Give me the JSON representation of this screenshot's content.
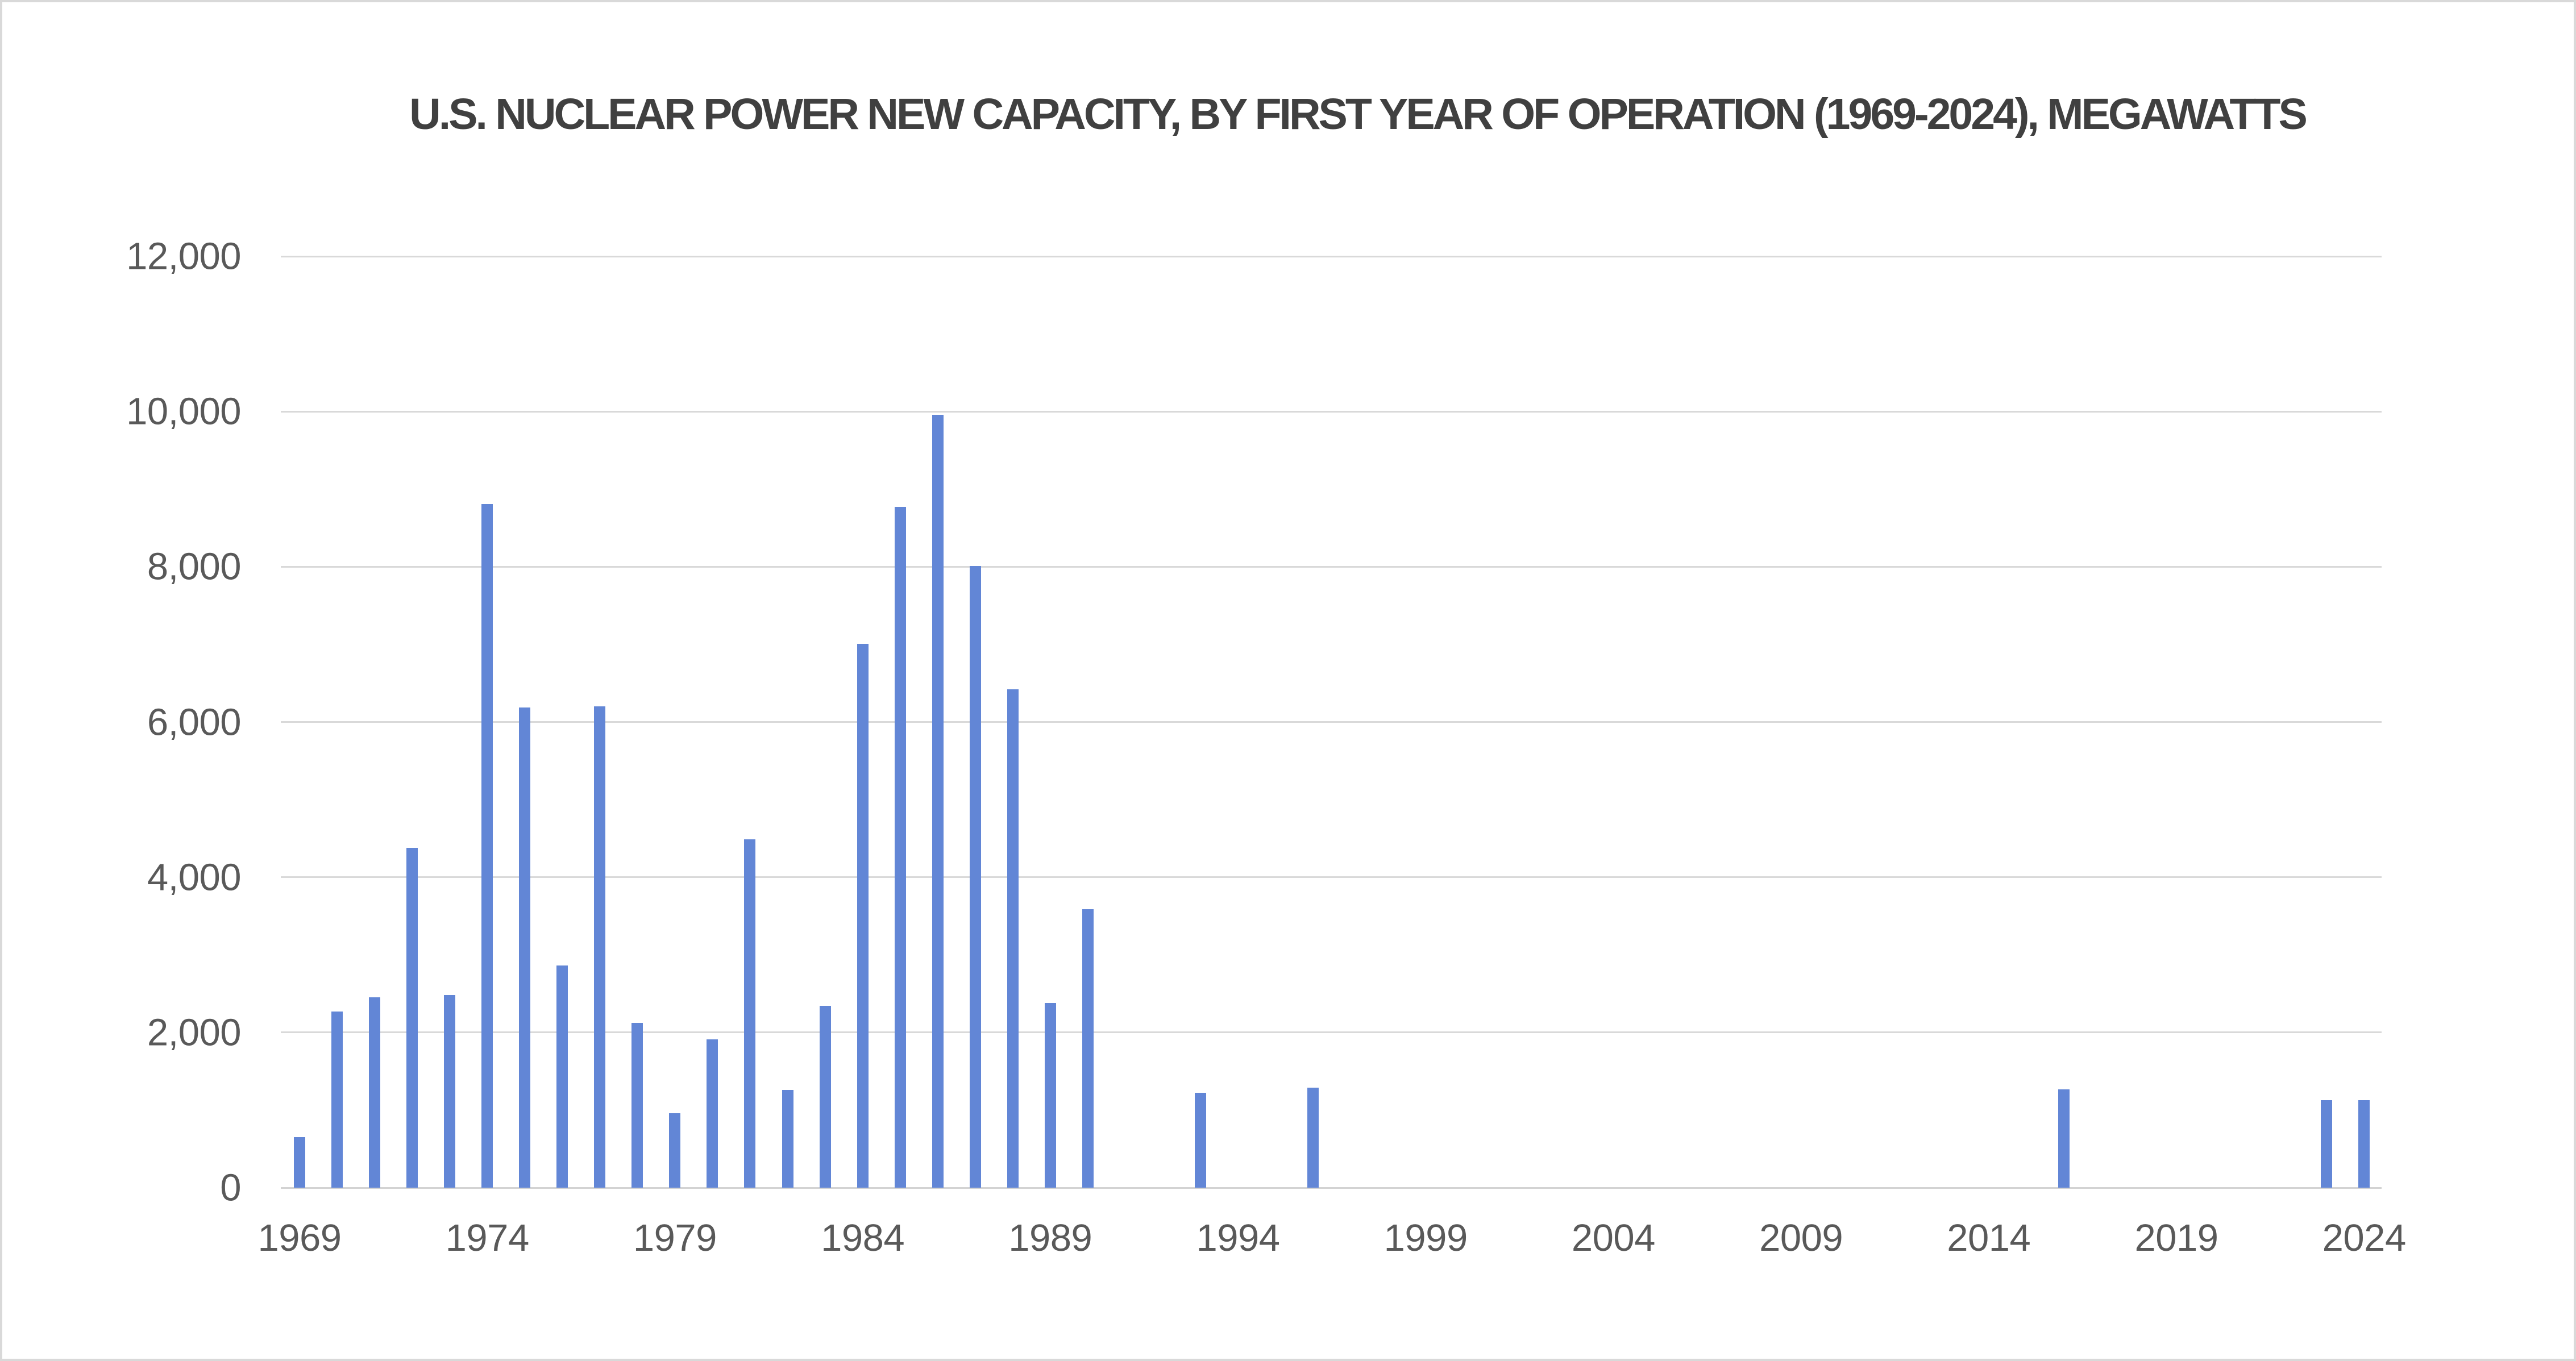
{
  "chart_data": {
    "type": "bar",
    "title": "U.S. NUCLEAR POWER NEW CAPACITY, BY FIRST YEAR OF OPERATION (1969-2024), MEGAWATTS",
    "xlabel": "",
    "ylabel": "",
    "unit": "megawatts",
    "xlim": [
      1969,
      2024
    ],
    "ylim": [
      0,
      12000
    ],
    "grid": "horizontal",
    "legend": "none",
    "x_ticks": [
      1969,
      1974,
      1979,
      1984,
      1989,
      1994,
      1999,
      2004,
      2009,
      2014,
      2019,
      2024
    ],
    "y_ticks": [
      0,
      2000,
      4000,
      6000,
      8000,
      10000,
      12000
    ],
    "y_tick_labels": [
      "0",
      "2,000",
      "4,000",
      "6,000",
      "8,000",
      "10,000",
      "12,000"
    ],
    "points": [
      {
        "year": 1969,
        "mw": 650
      },
      {
        "year": 1970,
        "mw": 2270
      },
      {
        "year": 1971,
        "mw": 2450
      },
      {
        "year": 1972,
        "mw": 4380
      },
      {
        "year": 1973,
        "mw": 2480
      },
      {
        "year": 1974,
        "mw": 8810
      },
      {
        "year": 1975,
        "mw": 6190
      },
      {
        "year": 1976,
        "mw": 2860
      },
      {
        "year": 1977,
        "mw": 6200
      },
      {
        "year": 1978,
        "mw": 2120
      },
      {
        "year": 1979,
        "mw": 960
      },
      {
        "year": 1980,
        "mw": 1910
      },
      {
        "year": 1981,
        "mw": 4490
      },
      {
        "year": 1982,
        "mw": 1260
      },
      {
        "year": 1983,
        "mw": 2340
      },
      {
        "year": 1984,
        "mw": 7010
      },
      {
        "year": 1985,
        "mw": 8770
      },
      {
        "year": 1986,
        "mw": 9960
      },
      {
        "year": 1987,
        "mw": 8010
      },
      {
        "year": 1988,
        "mw": 6420
      },
      {
        "year": 1989,
        "mw": 2380
      },
      {
        "year": 1990,
        "mw": 3590
      },
      {
        "year": 1993,
        "mw": 1220
      },
      {
        "year": 1996,
        "mw": 1290
      },
      {
        "year": 2016,
        "mw": 1270
      },
      {
        "year": 2023,
        "mw": 1130
      },
      {
        "year": 2024,
        "mw": 1130
      }
    ]
  },
  "colors": {
    "bar": "#6286D6",
    "gridline": "#D9D9D9",
    "axis_line": "#D3D3D3",
    "title_text": "#404040",
    "tick_text": "#595959",
    "background": "#FFFFFF",
    "page_border": "#D9D9D9"
  }
}
